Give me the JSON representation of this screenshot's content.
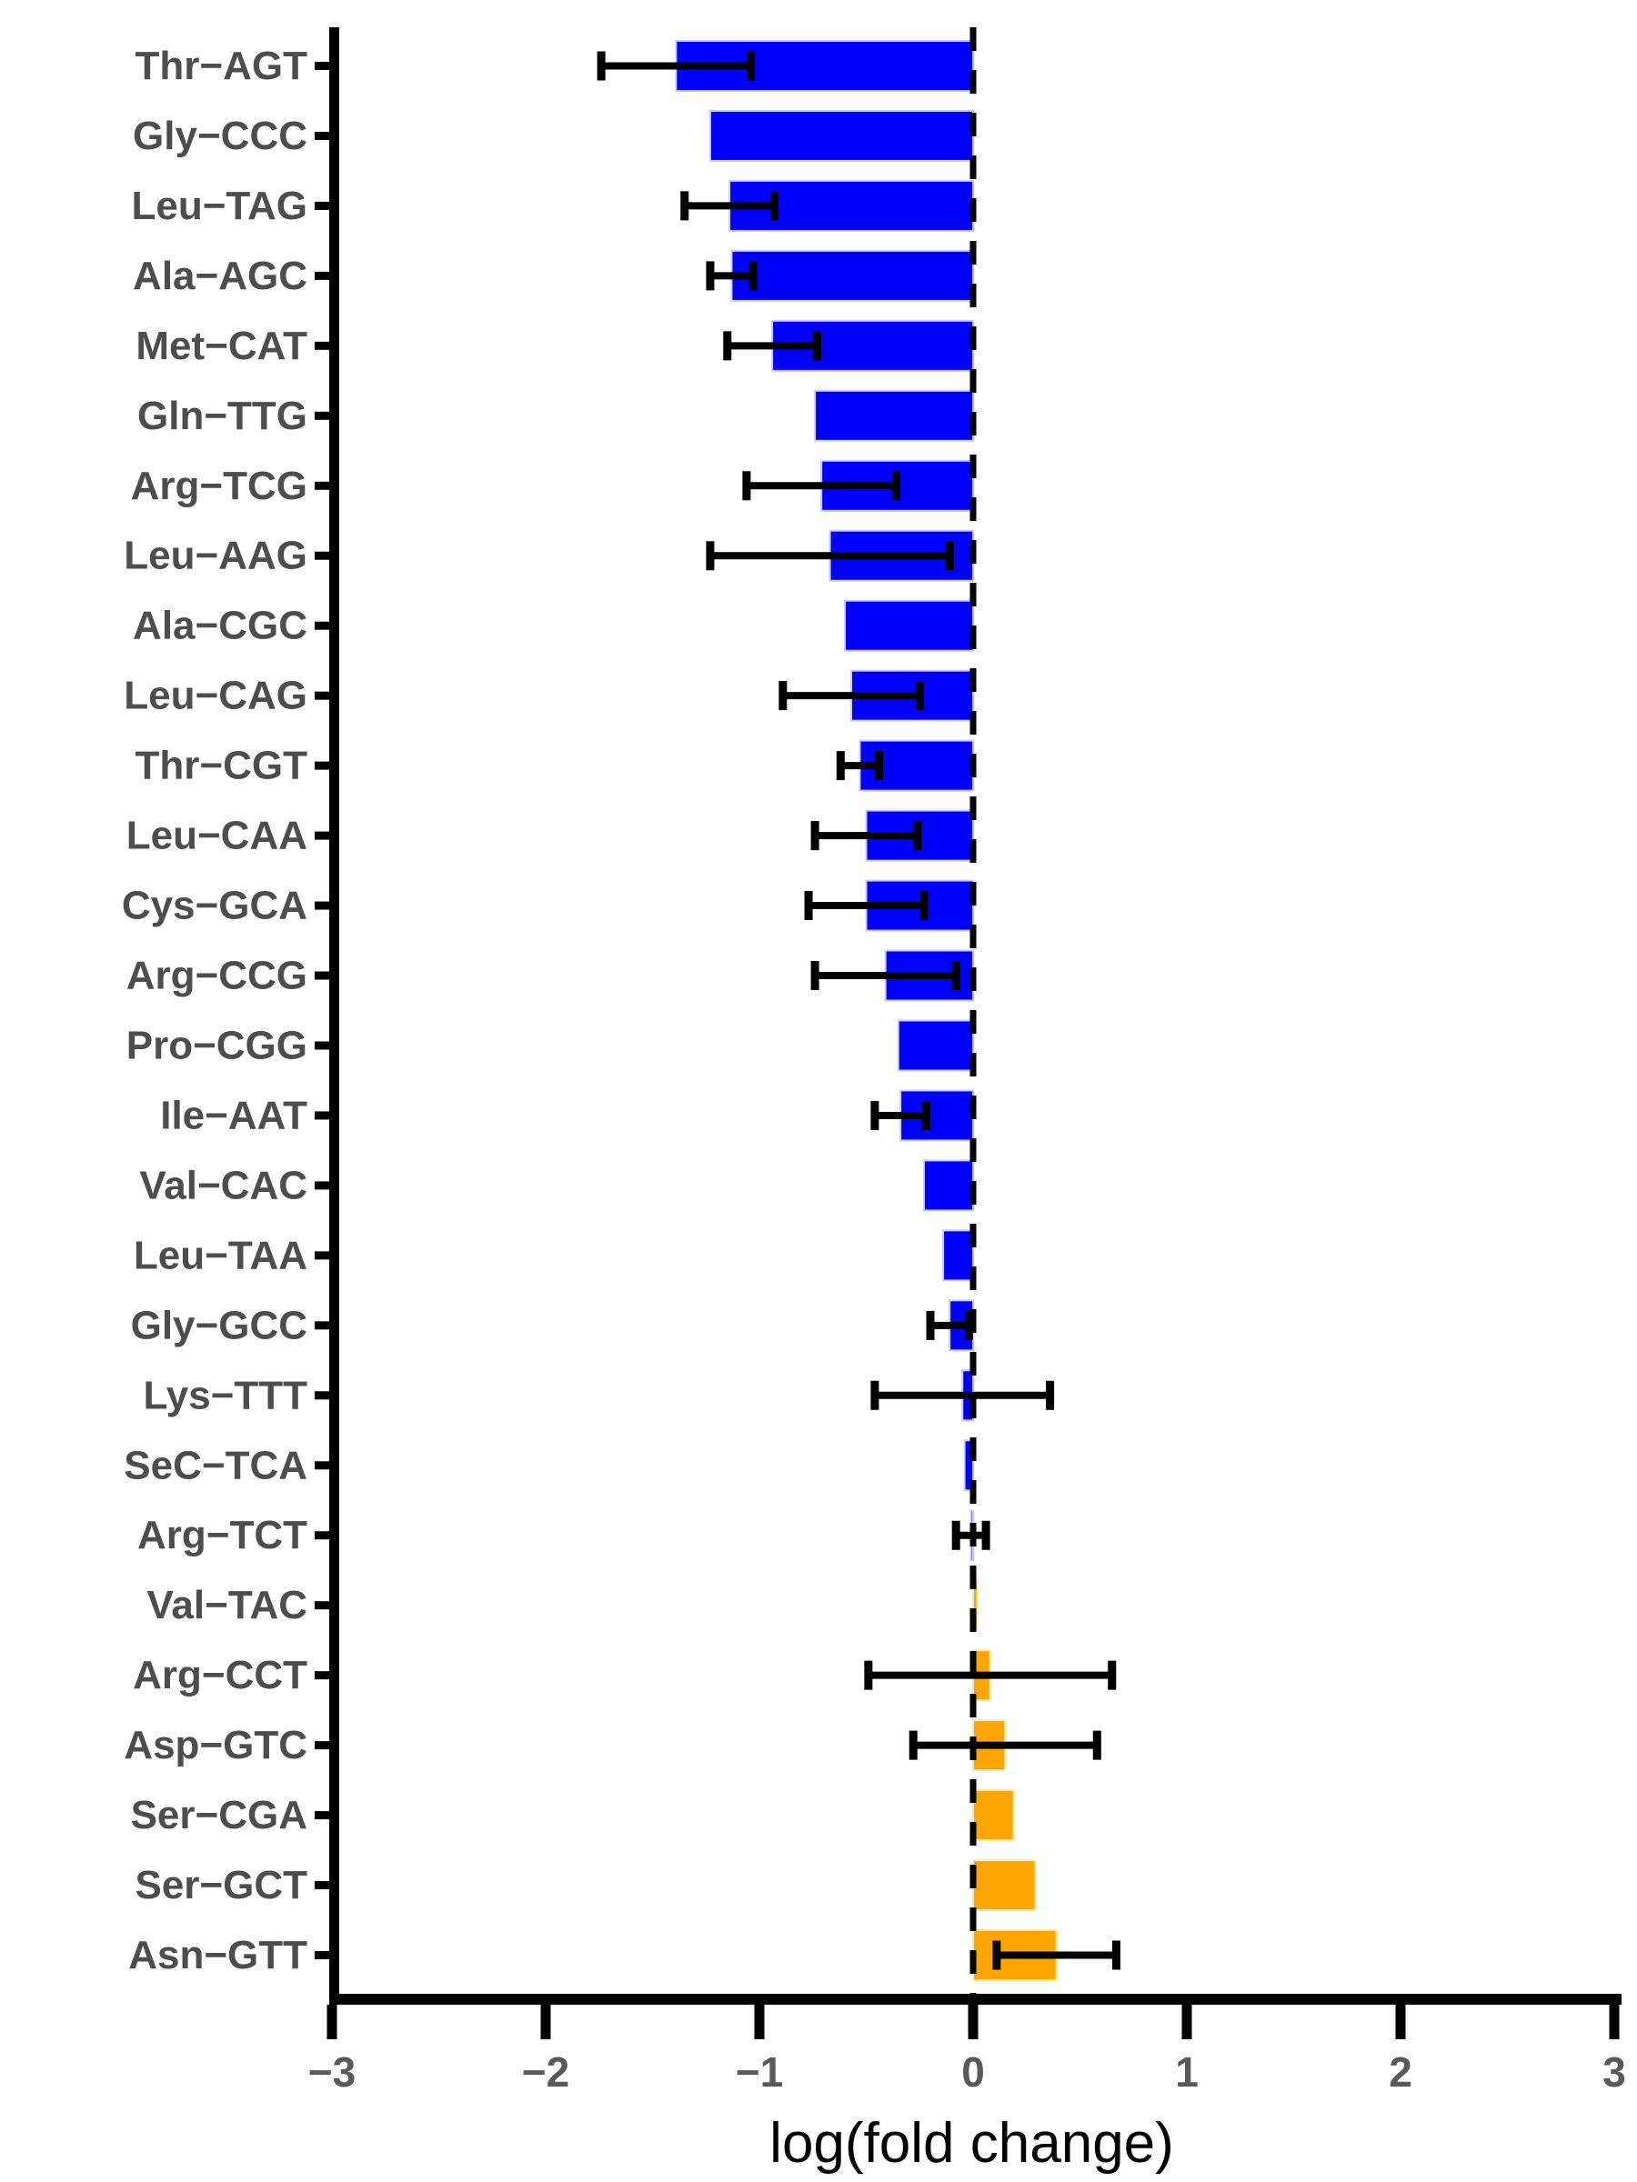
{
  "chart_data": {
    "type": "bar",
    "orientation": "horizontal",
    "title": "",
    "xlabel": "log(fold change)",
    "ylabel": "",
    "xlim": [
      -3,
      3
    ],
    "xticks": [
      -3,
      -2,
      -1,
      0,
      1,
      2,
      3
    ],
    "xtick_labels": [
      "−3",
      "−2",
      "−1",
      "0",
      "1",
      "2",
      "3"
    ],
    "grid": false,
    "zero_line": "dashed",
    "legend": "none",
    "negative_color": "#0000FF",
    "positive_color": "#FFA500",
    "error_bar_color": "#000000",
    "axis_color": "#000000",
    "tick_label_color": "#595959",
    "category_label_color": "#4d4d4d",
    "categories": [
      "Thr−AGT",
      "Gly−CCC",
      "Leu−TAG",
      "Ala−AGC",
      "Met−CAT",
      "Gln−TTG",
      "Arg−TCG",
      "Leu−AAG",
      "Ala−CGC",
      "Leu−CAG",
      "Thr−CGT",
      "Leu−CAA",
      "Cys−GCA",
      "Arg−CCG",
      "Pro−CGG",
      "Ile−AAT",
      "Val−CAC",
      "Leu−TAA",
      "Gly−GCC",
      "Lys−TTT",
      "SeC−TCA",
      "Arg−TCT",
      "Val−TAC",
      "Arg−CCT",
      "Asp−GTC",
      "Ser−CGA",
      "Ser−GCT",
      "Asn−GTT"
    ],
    "values": [
      -1.39,
      -1.23,
      -1.14,
      -1.13,
      -0.94,
      -0.74,
      -0.71,
      -0.67,
      -0.6,
      -0.57,
      -0.53,
      -0.5,
      -0.5,
      -0.41,
      -0.35,
      -0.34,
      -0.23,
      -0.14,
      -0.11,
      -0.05,
      -0.04,
      -0.01,
      0.02,
      0.08,
      0.15,
      0.19,
      0.29,
      0.39
    ],
    "errors": [
      0.35,
      null,
      0.21,
      0.1,
      0.21,
      null,
      0.35,
      0.56,
      null,
      0.32,
      0.09,
      0.24,
      0.27,
      0.33,
      null,
      0.12,
      null,
      null,
      0.09,
      0.41,
      null,
      0.07,
      null,
      0.57,
      0.43,
      null,
      null,
      0.28
    ]
  }
}
